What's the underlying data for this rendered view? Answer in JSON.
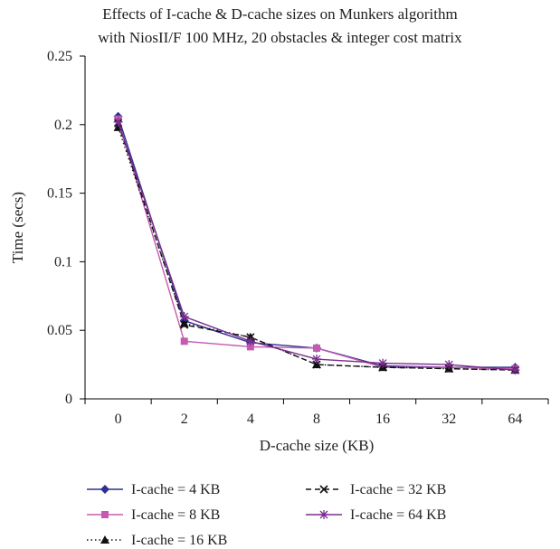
{
  "chart_data": {
    "type": "line",
    "title": [
      "Effects of I-cache & D-cache sizes on Munkers algorithm",
      "with NiosII/F 100 MHz, 20 obstacles & integer cost matrix"
    ],
    "xlabel": "D-cache size (KB)",
    "ylabel": "Time (secs)",
    "categories": [
      "0",
      "2",
      "4",
      "8",
      "16",
      "32",
      "64"
    ],
    "yticks": [
      "0",
      "0.05",
      "0.1",
      "0.15",
      "0.2",
      "0.25"
    ],
    "ylim": [
      0,
      0.25
    ],
    "grid": false,
    "legend_position": "bottom",
    "series": [
      {
        "name": "I-cache = 4 KB",
        "values": [
          0.206,
          0.057,
          0.041,
          0.037,
          0.024,
          0.023,
          0.023
        ],
        "color": "#2e3192",
        "marker": "diamond",
        "dash": "solid"
      },
      {
        "name": "I-cache = 8 KB",
        "values": [
          0.204,
          0.042,
          0.038,
          0.037,
          0.023,
          0.023,
          0.022
        ],
        "color": "#c55bb1",
        "marker": "square",
        "dash": "solid"
      },
      {
        "name": "I-cache = 16 KB",
        "values": [
          0.198,
          0.055,
          0.045,
          0.025,
          0.023,
          0.022,
          0.021
        ],
        "color": "#111111",
        "marker": "triangle",
        "dash": "dotted"
      },
      {
        "name": "I-cache = 32 KB",
        "values": [
          0.201,
          0.054,
          0.045,
          0.025,
          0.023,
          0.022,
          0.021
        ],
        "color": "#111111",
        "marker": "x",
        "dash": "dashed"
      },
      {
        "name": "I-cache = 64 KB",
        "values": [
          0.202,
          0.06,
          0.042,
          0.029,
          0.026,
          0.025,
          0.021
        ],
        "color": "#7b2d8e",
        "marker": "star",
        "dash": "solid"
      }
    ]
  }
}
